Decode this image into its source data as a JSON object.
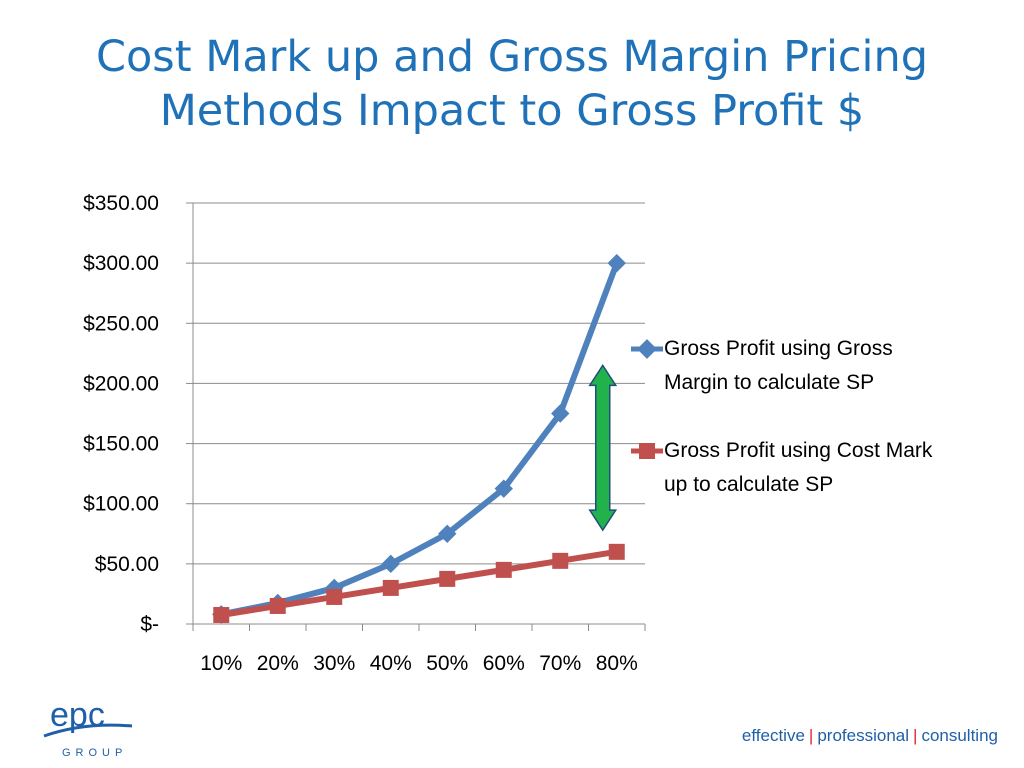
{
  "slide": {
    "title_line1": "Cost Mark up and Gross Margin Pricing",
    "title_line2": "Methods Impact to Gross Profit $"
  },
  "chart_data": {
    "type": "line",
    "categories": [
      "10%",
      "20%",
      "30%",
      "40%",
      "50%",
      "60%",
      "70%",
      "80%"
    ],
    "series": [
      {
        "name": "Gross Profit using Gross Margin to calculate SP",
        "values": [
          8.0,
          17.5,
          30.0,
          50.0,
          75.0,
          112.5,
          175.0,
          300.0
        ],
        "color": "#4f81bd",
        "marker": "diamond"
      },
      {
        "name": "Gross Profit using Cost Mark up to calculate SP",
        "values": [
          7.5,
          15.0,
          22.5,
          30.0,
          37.5,
          45.0,
          52.5,
          60.0
        ],
        "color": "#c0504d",
        "marker": "square"
      }
    ],
    "ylim": [
      0,
      350
    ],
    "yticks": [
      {
        "value": 350,
        "label": "$350.00"
      },
      {
        "value": 300,
        "label": "$300.00"
      },
      {
        "value": 250,
        "label": "$250.00"
      },
      {
        "value": 200,
        "label": "$200.00"
      },
      {
        "value": 150,
        "label": "$150.00"
      },
      {
        "value": 100,
        "label": "$100.00"
      },
      {
        "value": 50,
        "label": "$50.00"
      },
      {
        "value": 0,
        "label": "$-"
      }
    ],
    "grid": true,
    "legend_position": "right",
    "annotation": {
      "type": "double-arrow",
      "color": "#22b24c",
      "from_value": 215,
      "to_value": 78,
      "category": "80%"
    }
  },
  "footer": {
    "logo_text": "epc",
    "logo_subtext": "GROUP",
    "tagline_1": "effective",
    "tagline_sep": "|",
    "tagline_2": "professional",
    "tagline_3": "consulting",
    "brand_color": "#1f5fa8"
  }
}
